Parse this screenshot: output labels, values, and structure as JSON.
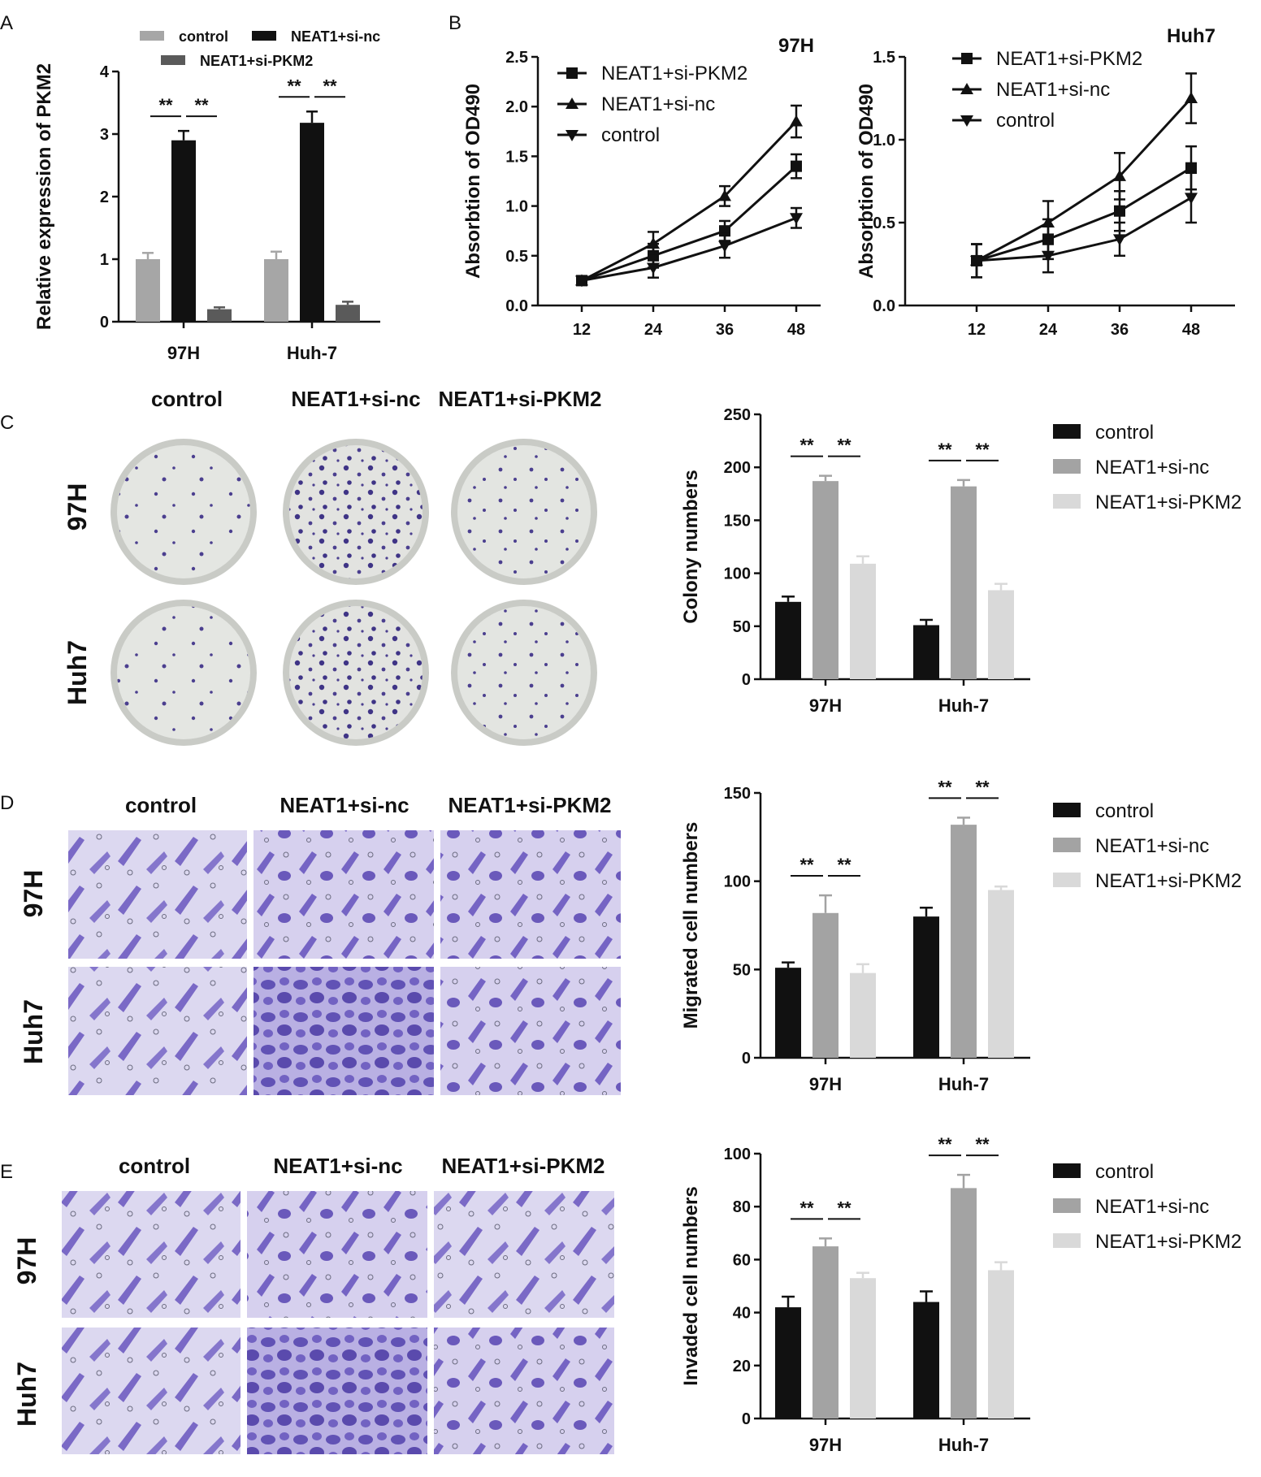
{
  "panel_labels": [
    "A",
    "B",
    "C",
    "D",
    "E"
  ],
  "colors": {
    "control_A": "#a6a6a6",
    "neat_nc_A": "#111111",
    "neat_pkm2_A": "#5a5a5a",
    "control_CDE": "#111111",
    "neat_nc_CDE": "#a3a3a3",
    "neat_pkm2_CDE": "#d9d9d9",
    "dish_stain": "#4b3f8f",
    "cell_stain": "#7b6bc4",
    "cell_bg": "#d8d4ee"
  },
  "image_panels": {
    "col_headers": [
      "control",
      "NEAT1+si-nc",
      "NEAT1+si-PKM2"
    ],
    "row_headers": [
      "97H",
      "Huh7"
    ]
  },
  "chart_data": [
    {
      "id": "A",
      "type": "bar",
      "categories": [
        "97H",
        "Huh-7"
      ],
      "ylabel": "Relative expression of PKM2",
      "ylim": [
        0,
        4
      ],
      "yticks": [
        "0",
        "1",
        "2",
        "3",
        "4"
      ],
      "significance": "**",
      "series": [
        {
          "name": "control",
          "values": [
            1.0,
            1.0
          ],
          "errors": [
            0.1,
            0.12
          ]
        },
        {
          "name": "NEAT1+si-nc",
          "values": [
            2.9,
            3.18
          ],
          "errors": [
            0.15,
            0.18
          ]
        },
        {
          "name": "NEAT1+si-PKM2",
          "values": [
            0.2,
            0.27
          ],
          "errors": [
            0.03,
            0.05
          ]
        }
      ]
    },
    {
      "id": "B1",
      "type": "line",
      "title": "97H",
      "ylabel": "Absorbtion of OD490",
      "x": [
        12,
        24,
        36,
        48
      ],
      "ylim": [
        0,
        2.5
      ],
      "yticks": [
        "0.0",
        "0.5",
        "1.0",
        "1.5",
        "2.0",
        "2.5"
      ],
      "series": [
        {
          "name": "NEAT1+si-PKM2",
          "marker": "square",
          "values": [
            0.25,
            0.5,
            0.75,
            1.4
          ],
          "errors": [
            0.04,
            0.12,
            0.1,
            0.12
          ]
        },
        {
          "name": "NEAT1+si-nc",
          "marker": "triangle-up",
          "values": [
            0.25,
            0.62,
            1.1,
            1.85
          ],
          "errors": [
            0.04,
            0.12,
            0.1,
            0.16
          ]
        },
        {
          "name": "control",
          "marker": "triangle-down",
          "values": [
            0.25,
            0.38,
            0.6,
            0.88
          ],
          "errors": [
            0.04,
            0.1,
            0.12,
            0.1
          ]
        }
      ]
    },
    {
      "id": "B2",
      "type": "line",
      "title": "Huh7",
      "ylabel": "Absorbtion of OD490",
      "x": [
        12,
        24,
        36,
        48
      ],
      "ylim": [
        0,
        1.5
      ],
      "yticks": [
        "0.0",
        "0.5",
        "1.0",
        "1.5"
      ],
      "series": [
        {
          "name": "NEAT1+si-PKM2",
          "marker": "square",
          "values": [
            0.27,
            0.4,
            0.57,
            0.83
          ],
          "errors": [
            0.1,
            0.12,
            0.12,
            0.13
          ]
        },
        {
          "name": "NEAT1+si-nc",
          "marker": "triangle-up",
          "values": [
            0.27,
            0.5,
            0.78,
            1.25
          ],
          "errors": [
            0.1,
            0.13,
            0.14,
            0.15
          ]
        },
        {
          "name": "control",
          "marker": "triangle-down",
          "values": [
            0.27,
            0.3,
            0.4,
            0.65
          ],
          "errors": [
            0.1,
            0.1,
            0.1,
            0.15
          ]
        }
      ]
    },
    {
      "id": "C",
      "type": "bar",
      "categories": [
        "97H",
        "Huh-7"
      ],
      "ylabel": "Colony numbers",
      "ylim": [
        0,
        250
      ],
      "yticks": [
        "0",
        "50",
        "100",
        "150",
        "200",
        "250"
      ],
      "significance": "**",
      "series": [
        {
          "name": "control",
          "values": [
            73,
            51
          ],
          "errors": [
            5,
            5
          ]
        },
        {
          "name": "NEAT1+si-nc",
          "values": [
            187,
            182
          ],
          "errors": [
            5,
            6
          ]
        },
        {
          "name": "NEAT1+si-PKM2",
          "values": [
            109,
            84
          ],
          "errors": [
            7,
            6
          ]
        }
      ]
    },
    {
      "id": "D",
      "type": "bar",
      "categories": [
        "97H",
        "Huh-7"
      ],
      "ylabel": "Migrated cell numbers",
      "ylim": [
        0,
        150
      ],
      "yticks": [
        "0",
        "50",
        "100",
        "150"
      ],
      "significance": "**",
      "series": [
        {
          "name": "control",
          "values": [
            51,
            80
          ],
          "errors": [
            3,
            5
          ]
        },
        {
          "name": "NEAT1+si-nc",
          "values": [
            82,
            132
          ],
          "errors": [
            10,
            4
          ]
        },
        {
          "name": "NEAT1+si-PKM2",
          "values": [
            48,
            95
          ],
          "errors": [
            5,
            2
          ]
        }
      ]
    },
    {
      "id": "E",
      "type": "bar",
      "categories": [
        "97H",
        "Huh-7"
      ],
      "ylabel": "Invaded cell numbers",
      "ylim": [
        0,
        100
      ],
      "yticks": [
        "0",
        "20",
        "40",
        "60",
        "80",
        "100"
      ],
      "significance": "**",
      "series": [
        {
          "name": "control",
          "values": [
            42,
            44
          ],
          "errors": [
            4,
            4
          ]
        },
        {
          "name": "NEAT1+si-nc",
          "values": [
            65,
            87
          ],
          "errors": [
            3,
            5
          ]
        },
        {
          "name": "NEAT1+si-PKM2",
          "values": [
            53,
            56
          ],
          "errors": [
            2,
            3
          ]
        }
      ]
    }
  ]
}
